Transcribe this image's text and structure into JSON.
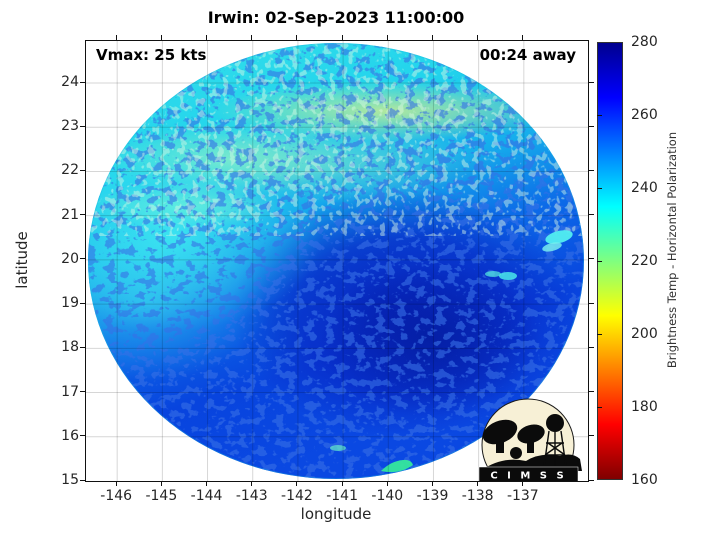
{
  "title": "Irwin: 02-Sep-2023 11:00:00",
  "annotations": {
    "vmax": "Vmax: 25 kts",
    "eta": "00:24 away"
  },
  "axes": {
    "xlabel": "longitude",
    "ylabel": "latitude",
    "x_ticks": [
      -146,
      -145,
      -144,
      -143,
      -142,
      -141,
      -140,
      -139,
      -138,
      -137
    ],
    "y_ticks": [
      15,
      16,
      17,
      18,
      19,
      20,
      21,
      22,
      23,
      24
    ],
    "x_range": [
      -146.69,
      -135.58
    ],
    "y_range": [
      15,
      24.95
    ],
    "grid": true
  },
  "colorbar": {
    "label": "Brightness Temp - Horizontal Polarization",
    "ticks": [
      160,
      180,
      200,
      220,
      240,
      260,
      280
    ],
    "range": [
      160,
      280
    ],
    "stops_top_to_bottom": [
      {
        "color": "#00008F",
        "pct": 0
      },
      {
        "color": "#0000FF",
        "pct": 12.5
      },
      {
        "color": "#00FFFF",
        "pct": 37.5
      },
      {
        "color": "#FFFF00",
        "pct": 62.5
      },
      {
        "color": "#FF0000",
        "pct": 87.5
      },
      {
        "color": "#800000",
        "pct": 100
      }
    ]
  },
  "logo": {
    "text": "C I M S S"
  },
  "chart_data": {
    "type": "heatmap",
    "title": "Irwin: 02-Sep-2023 11:00:00",
    "xlabel": "longitude",
    "ylabel": "latitude",
    "x_range": [
      -146.7,
      -135.6
    ],
    "y_range": [
      15,
      25
    ],
    "grid": true,
    "colorbar_label": "Brightness Temp - Horizontal Polarization",
    "colorbar_range_K": [
      160,
      280
    ],
    "colormap": "reversed jet (280 K = dark blue at top, 160 K = dark red at bottom)",
    "storm": {
      "name": "Irwin",
      "vmax_kts": 25,
      "time_offset": "00:24 away"
    },
    "swath": {
      "shape": "circular microwave swath",
      "center_lon": -141.1,
      "center_lat": 20.0,
      "radius_deg": 5.0
    },
    "regions": [
      {
        "area": "upper band, lat 21.5-24.5",
        "approx_value_K": "225-245 (cyan with pale-green patches, scattered 260-275 dark-blue speckles)"
      },
      {
        "area": "yellow-green streak, lat ~23.3, lon -143 to -139.5",
        "approx_value_K": "215-222"
      },
      {
        "area": "left middle, lat 19-21.5, lon < -143",
        "approx_value_K": "235-250 (bright cyan)"
      },
      {
        "area": "center-right blob, lat 16.5-20.5, lon -142.5 to -137.5",
        "approx_value_K": "265-280 (deep blue, max ~280 near lon -140.5, lat 18.5)"
      },
      {
        "area": "bottom, lat 15-17",
        "approx_value_K": "255-268 (blue, mottled)"
      },
      {
        "area": "bright streak near right edge, lon ~-136.5, lat ~20.6",
        "approx_value_K": "230-240 (cyan)"
      },
      {
        "area": "swath bottom edge, lon ~-139.5, lat ~15.3",
        "approx_value_K": "~220 (green-cyan)"
      }
    ]
  }
}
